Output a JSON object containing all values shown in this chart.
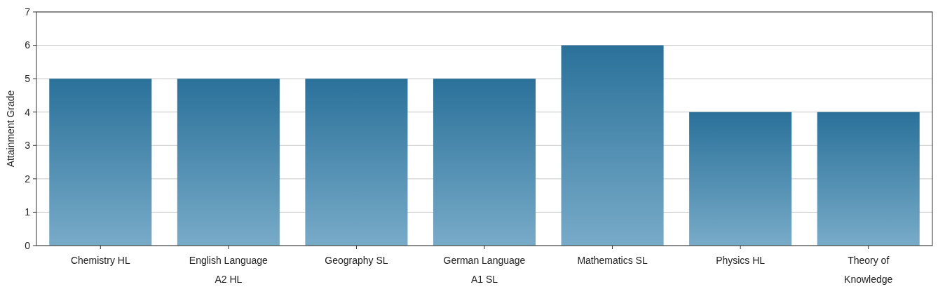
{
  "chart_data": {
    "type": "bar",
    "ylabel": "Attainment Grade",
    "categories": [
      "Chemistry HL",
      "English Language A2 HL",
      "Geography SL",
      "German Language A1 SL",
      "Mathematics SL",
      "Physics HL",
      "Theory of Knowledge"
    ],
    "values": [
      5,
      5,
      5,
      5,
      6,
      4,
      4
    ],
    "color": "#2f7eab",
    "ylim": [
      0,
      7
    ],
    "yticks": [
      0,
      1,
      2,
      3,
      4,
      5,
      6,
      7
    ],
    "grid": "y"
  }
}
